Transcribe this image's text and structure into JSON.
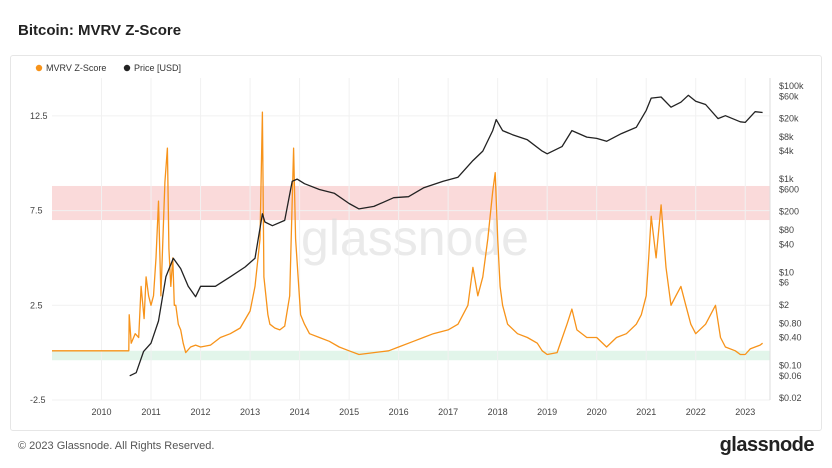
{
  "title": "Bitcoin: MVRV Z-Score",
  "footer": {
    "copyright": "© 2023 Glassnode. All Rights Reserved.",
    "logo": "glassnode"
  },
  "watermark": "glassnode",
  "colors": {
    "zscore": "#f7931a",
    "price": "#222222",
    "red_band": "#fadada",
    "green_band": "#e2f5ea"
  },
  "chart_data": {
    "type": "line",
    "title": "Bitcoin: MVRV Z-Score",
    "legend": [
      "MVRV Z-Score",
      "Price [USD]"
    ],
    "legend_position": "top-left",
    "x_ticks": [
      "2010",
      "2011",
      "2012",
      "2013",
      "2014",
      "2015",
      "2016",
      "2017",
      "2018",
      "2019",
      "2020",
      "2021",
      "2022",
      "2023"
    ],
    "xlim": [
      2009.0,
      2023.5
    ],
    "y_left_ticks": [
      "12.5",
      "7.5",
      "2.5",
      "-2.5"
    ],
    "y_left_range": [
      -2.5,
      14.5
    ],
    "y_right_ticks": [
      "$100k",
      "$60k",
      "$20k",
      "$8k",
      "$4k",
      "$1k",
      "$600",
      "$200",
      "$80",
      "$40",
      "$10",
      "$6",
      "$2",
      "$0.80",
      "$0.40",
      "$0.10",
      "$0.06",
      "$0.02"
    ],
    "y_right_scale": "log",
    "red_band_zscore": [
      7.0,
      8.8
    ],
    "green_band_zscore": [
      -0.4,
      0.1
    ],
    "series": [
      {
        "name": "MVRV Z-Score",
        "x": [
          2009.0,
          2010.55,
          2010.56,
          2010.6,
          2010.68,
          2010.75,
          2010.8,
          2010.86,
          2010.9,
          2010.95,
          2011.0,
          2011.05,
          2011.1,
          2011.15,
          2011.2,
          2011.28,
          2011.33,
          2011.36,
          2011.4,
          2011.44,
          2011.47,
          2011.5,
          2011.55,
          2011.6,
          2011.65,
          2011.7,
          2011.8,
          2011.9,
          2012.0,
          2012.2,
          2012.4,
          2012.6,
          2012.8,
          2013.0,
          2013.1,
          2013.2,
          2013.25,
          2013.28,
          2013.32,
          2013.36,
          2013.4,
          2013.5,
          2013.6,
          2013.7,
          2013.8,
          2013.88,
          2013.92,
          2013.97,
          2014.02,
          2014.1,
          2014.2,
          2014.4,
          2014.6,
          2014.8,
          2015.0,
          2015.2,
          2015.5,
          2015.8,
          2016.0,
          2016.3,
          2016.5,
          2016.7,
          2017.0,
          2017.2,
          2017.4,
          2017.5,
          2017.6,
          2017.7,
          2017.8,
          2017.9,
          2017.95,
          2018.0,
          2018.05,
          2018.1,
          2018.2,
          2018.4,
          2018.6,
          2018.8,
          2018.9,
          2019.0,
          2019.2,
          2019.4,
          2019.5,
          2019.6,
          2019.8,
          2020.0,
          2020.2,
          2020.4,
          2020.6,
          2020.8,
          2020.9,
          2021.0,
          2021.05,
          2021.1,
          2021.2,
          2021.3,
          2021.4,
          2021.5,
          2021.6,
          2021.7,
          2021.8,
          2021.9,
          2022.0,
          2022.2,
          2022.4,
          2022.5,
          2022.6,
          2022.8,
          2022.9,
          2023.0,
          2023.1,
          2023.2,
          2023.3,
          2023.35
        ],
        "y": [
          0.1,
          0.1,
          2.0,
          0.5,
          1.0,
          0.8,
          3.5,
          1.8,
          4.0,
          3.0,
          2.5,
          3.0,
          5.0,
          8.0,
          3.0,
          9.0,
          10.8,
          5.5,
          3.5,
          5.0,
          2.5,
          2.5,
          1.5,
          1.2,
          0.5,
          0.0,
          0.3,
          0.4,
          0.3,
          0.4,
          0.8,
          1.0,
          1.3,
          2.2,
          3.5,
          6.0,
          12.7,
          4.0,
          3.0,
          2.0,
          1.5,
          1.3,
          1.2,
          1.4,
          3.0,
          10.8,
          6.0,
          4.0,
          2.0,
          1.5,
          1.0,
          0.8,
          0.6,
          0.3,
          0.1,
          -0.1,
          0.0,
          0.1,
          0.3,
          0.6,
          0.8,
          1.0,
          1.2,
          1.5,
          2.5,
          4.5,
          3.0,
          4.0,
          6.0,
          8.5,
          9.5,
          6.0,
          3.5,
          2.5,
          1.5,
          1.0,
          0.8,
          0.5,
          0.1,
          -0.1,
          0.0,
          1.5,
          2.3,
          1.2,
          0.8,
          0.8,
          0.3,
          0.8,
          1.0,
          1.5,
          2.0,
          3.0,
          5.0,
          7.2,
          5.0,
          7.8,
          4.5,
          2.5,
          3.0,
          3.5,
          2.5,
          1.5,
          1.0,
          1.5,
          2.5,
          0.8,
          0.3,
          0.1,
          -0.1,
          -0.1,
          0.2,
          0.3,
          0.4,
          0.5
        ]
      },
      {
        "name": "Price [USD]",
        "x": [
          2010.57,
          2010.7,
          2010.85,
          2011.0,
          2011.15,
          2011.3,
          2011.45,
          2011.6,
          2011.75,
          2011.9,
          2012.0,
          2012.3,
          2012.6,
          2012.9,
          2013.1,
          2013.25,
          2013.3,
          2013.45,
          2013.7,
          2013.85,
          2013.95,
          2014.1,
          2014.4,
          2014.7,
          2015.0,
          2015.2,
          2015.5,
          2015.9,
          2016.2,
          2016.5,
          2016.9,
          2017.2,
          2017.5,
          2017.7,
          2017.9,
          2017.97,
          2018.1,
          2018.3,
          2018.6,
          2018.9,
          2019.0,
          2019.3,
          2019.5,
          2019.8,
          2020.0,
          2020.2,
          2020.5,
          2020.8,
          2021.0,
          2021.1,
          2021.3,
          2021.5,
          2021.7,
          2021.85,
          2022.0,
          2022.2,
          2022.45,
          2022.6,
          2022.9,
          2023.0,
          2023.2,
          2023.35
        ],
        "y": [
          0.06,
          0.07,
          0.2,
          0.3,
          0.9,
          8,
          20,
          12,
          5,
          3,
          5,
          5,
          8,
          13,
          20,
          180,
          120,
          100,
          130,
          900,
          1000,
          800,
          600,
          500,
          300,
          230,
          260,
          400,
          420,
          650,
          900,
          1100,
          2500,
          4000,
          11000,
          19000,
          11000,
          9000,
          7000,
          4000,
          3500,
          5000,
          11000,
          8000,
          7500,
          6500,
          9500,
          13000,
          30000,
          55000,
          58000,
          35000,
          45000,
          63000,
          47000,
          40000,
          20000,
          23000,
          17000,
          16500,
          28000,
          27000
        ]
      }
    ]
  }
}
